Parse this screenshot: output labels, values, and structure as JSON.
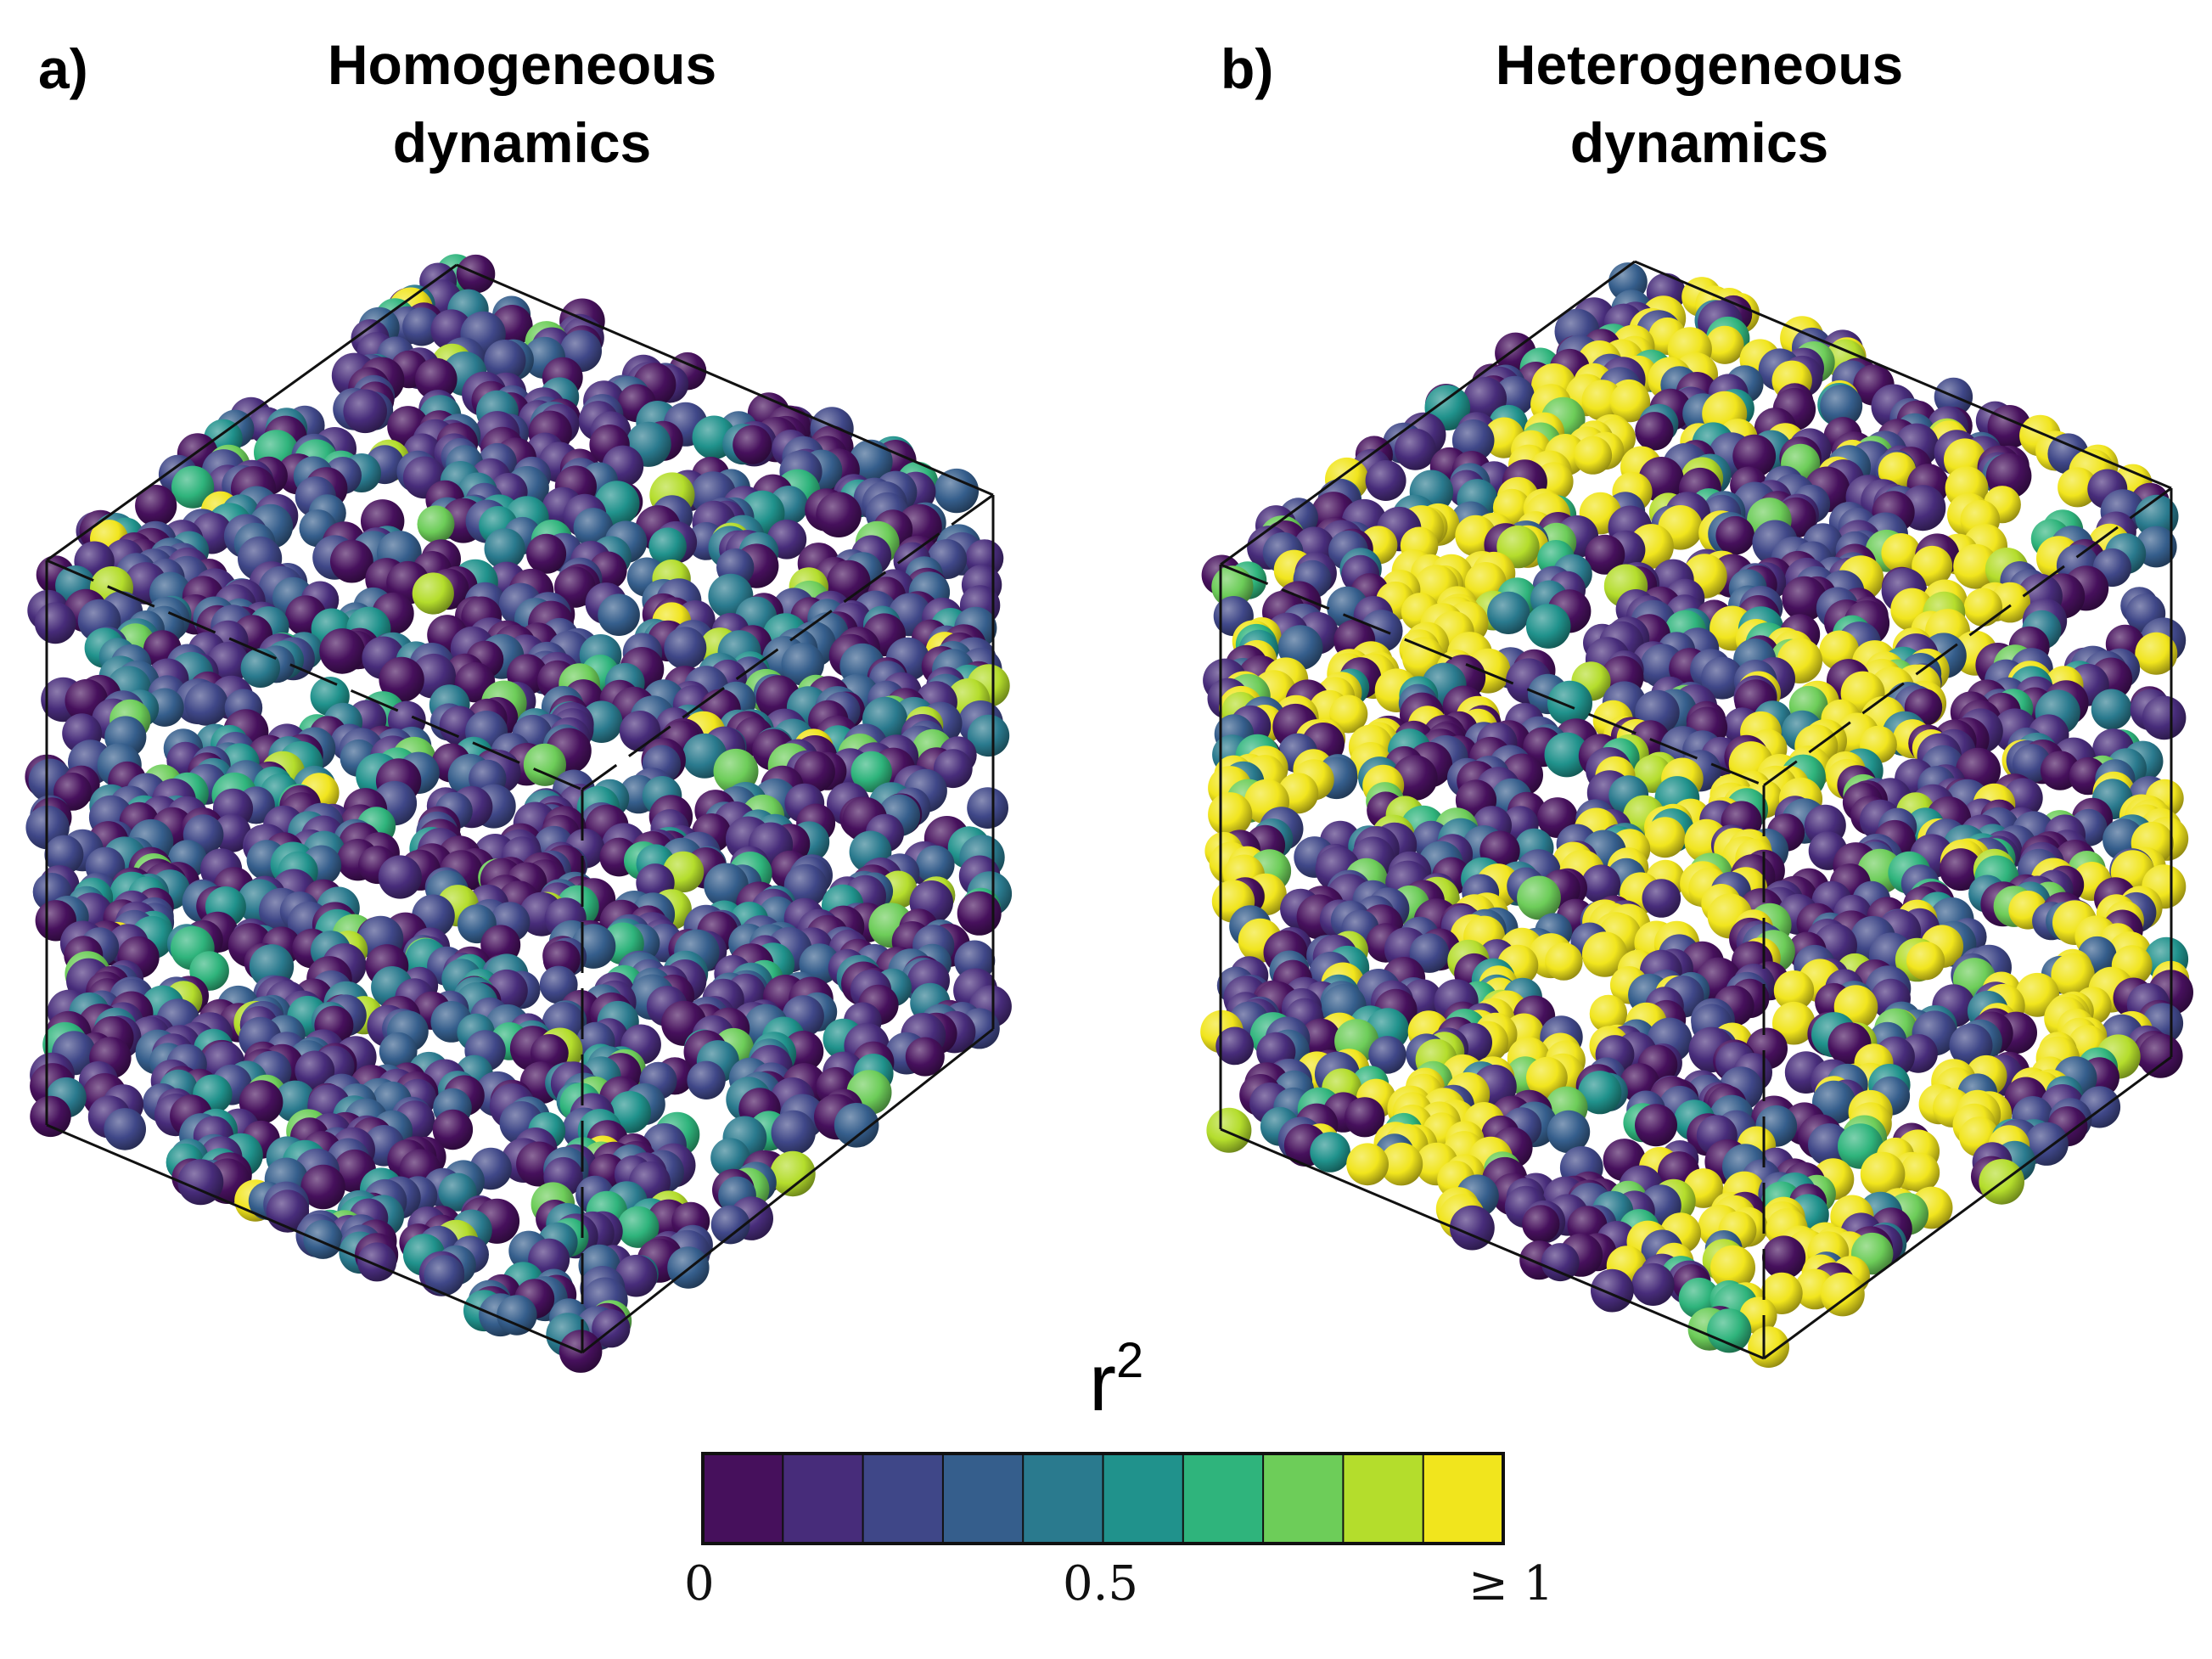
{
  "panels": [
    {
      "letter": "a)",
      "title_line1": "Homogeneous",
      "title_line2": "dynamics",
      "dynamics": "homogeneous"
    },
    {
      "letter": "b)",
      "title_line1": "Heterogeneous",
      "title_line2": "dynamics",
      "dynamics": "heterogeneous"
    }
  ],
  "colorbar": {
    "title_base": "r",
    "title_exp": "2",
    "tick_labels": [
      "0",
      "0.5",
      "≥ 1"
    ],
    "n_bins": 10,
    "colors": [
      "#46105c",
      "#472c7a",
      "#3f4788",
      "#355e8c",
      "#2a7a8e",
      "#20928c",
      "#2fb47c",
      "#6dcd59",
      "#b4dd2c",
      "#f1e51d"
    ]
  }
}
